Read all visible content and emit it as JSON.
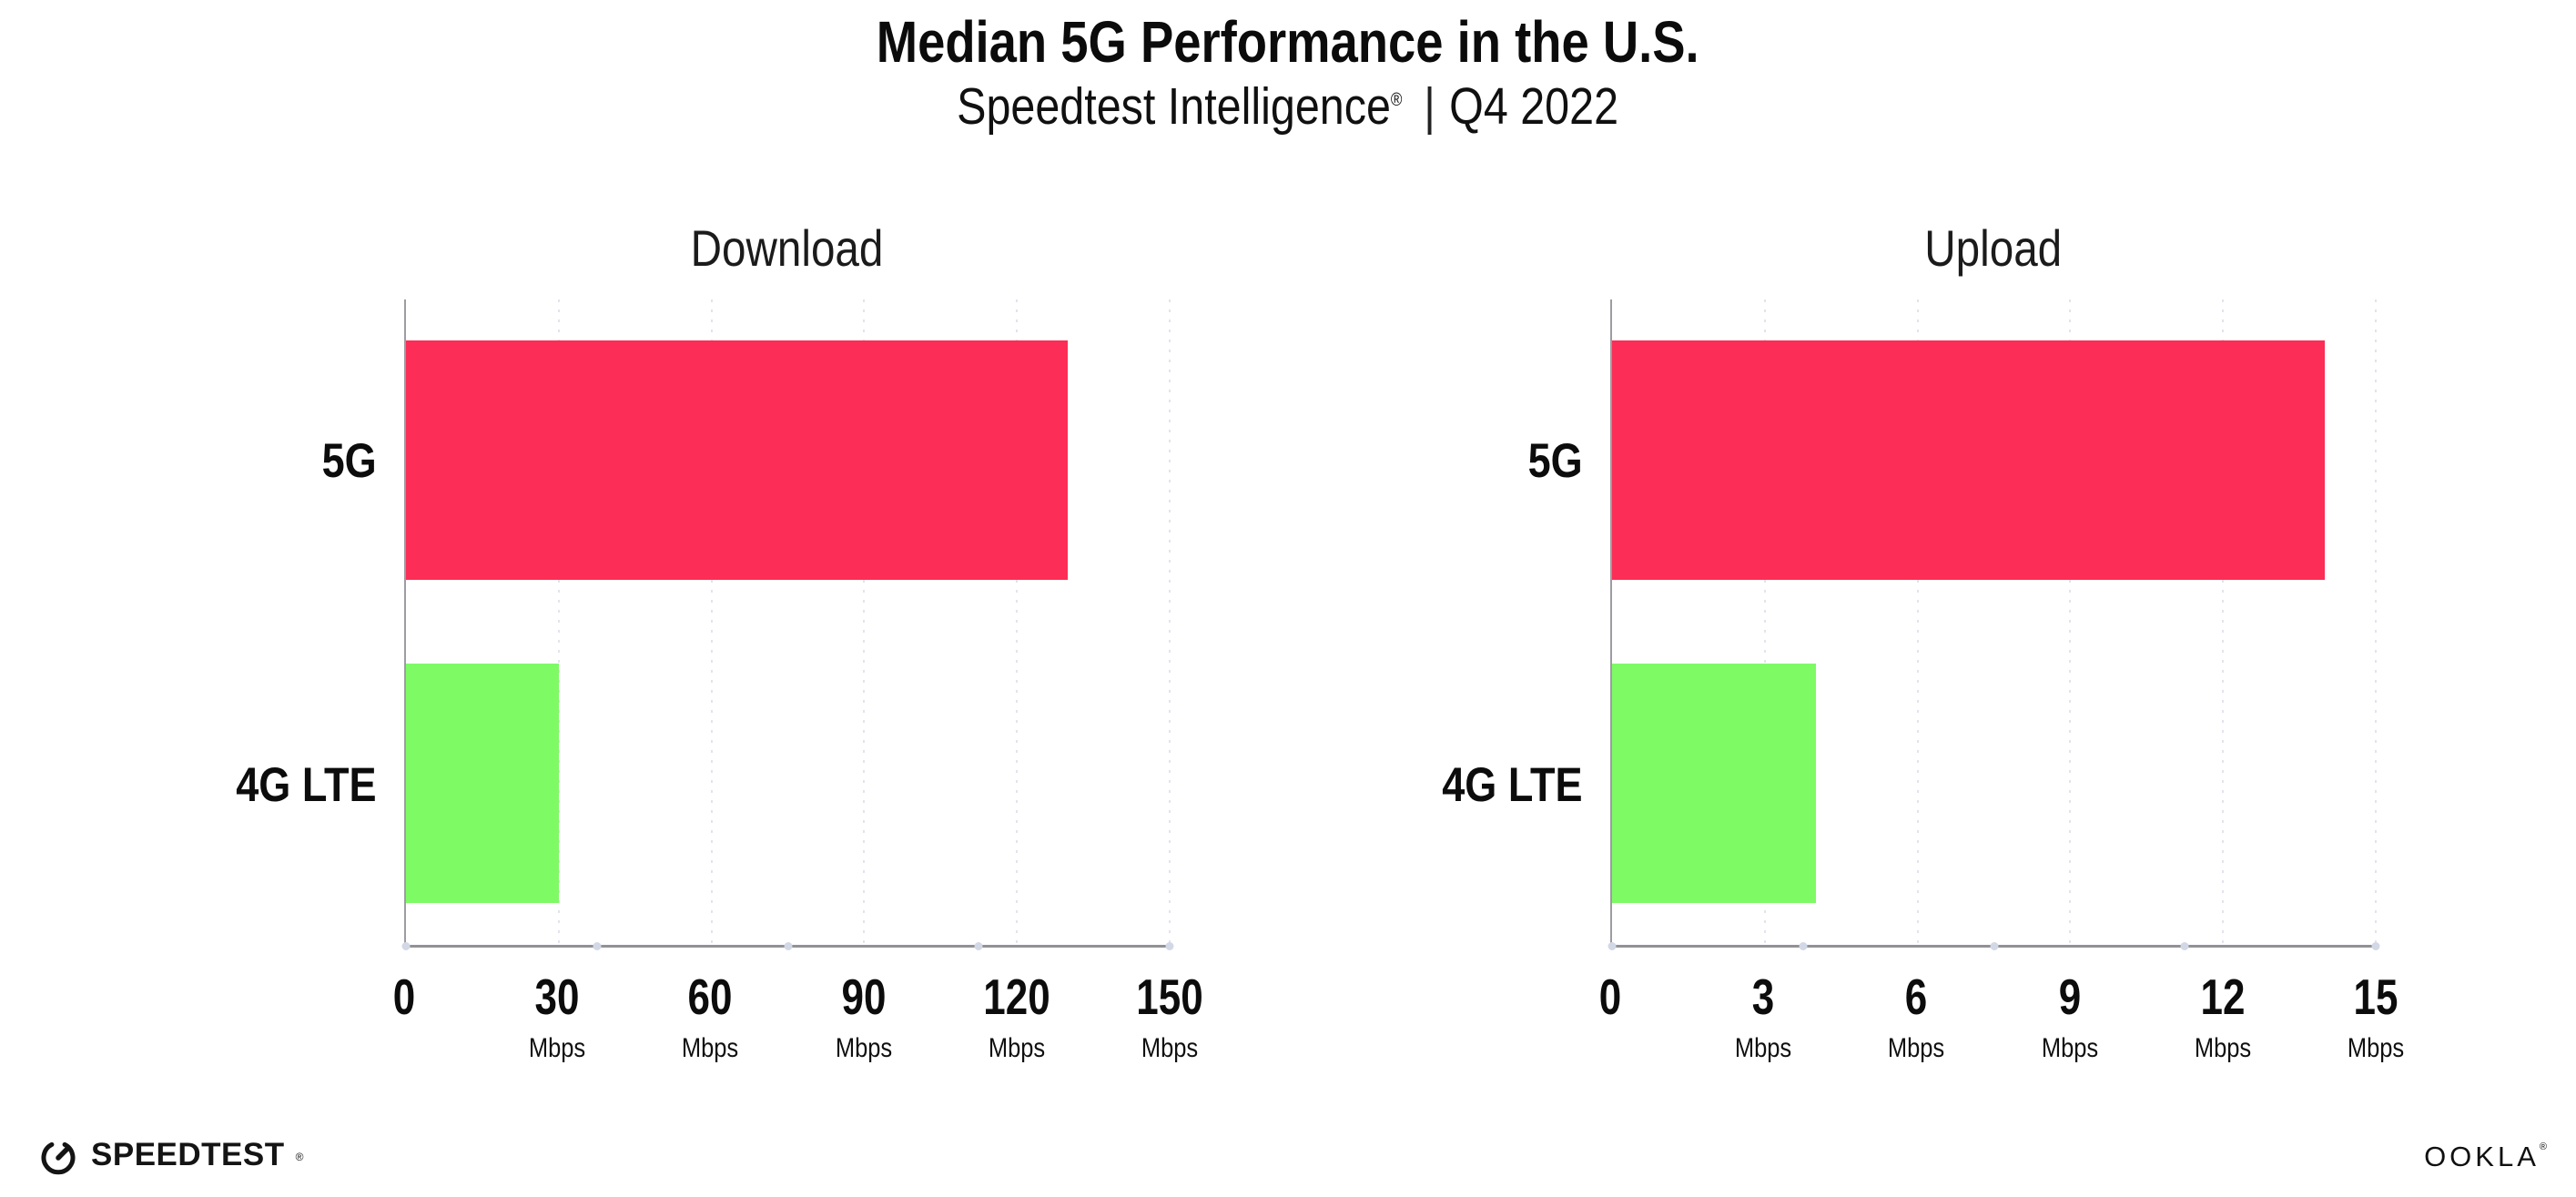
{
  "header": {
    "title": "Median 5G Performance in the U.S.",
    "subtitle_brand": "Speedtest Intelligence",
    "registered": "®",
    "subtitle_sep": "|",
    "subtitle_period": "Q4 2022"
  },
  "chart_data": [
    {
      "type": "bar",
      "orientation": "horizontal",
      "title": "Download",
      "categories": [
        "5G",
        "4G LTE"
      ],
      "values": [
        130,
        30
      ],
      "unit": "Mbps",
      "xlim": [
        0,
        150
      ],
      "xticks": [
        0,
        30,
        60,
        90,
        120,
        150
      ],
      "bar_colors": [
        "#fc2d56",
        "#7efa65"
      ],
      "grid": "dotted-vertical-behind-bars",
      "legend": "none"
    },
    {
      "type": "bar",
      "orientation": "horizontal",
      "title": "Upload",
      "categories": [
        "5G",
        "4G LTE"
      ],
      "values": [
        14,
        4
      ],
      "unit": "Mbps",
      "xlim": [
        0,
        15
      ],
      "xticks": [
        0,
        3,
        6,
        9,
        12,
        15
      ],
      "bar_colors": [
        "#fc2d56",
        "#7efa65"
      ],
      "grid": "dotted-vertical-behind-bars",
      "legend": "none"
    }
  ],
  "footer": {
    "speedtest_label": "SPEEDTEST",
    "speedtest_reg": "®",
    "ookla_label": "OOKLA",
    "ookla_reg": "®"
  },
  "colors": {
    "bar_5g": "#fc2d56",
    "bar_4g_lte": "#7efa65",
    "axis": "#919196",
    "gridline": "#e3e3ed",
    "text": "#111111",
    "background": "#ffffff"
  }
}
